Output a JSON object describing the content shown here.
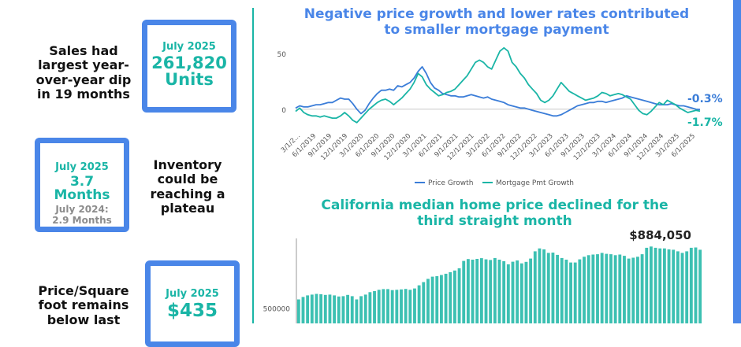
{
  "left_panel": {
    "sales": {
      "description": "Sales had largest year-over-year dip in 19 months",
      "date": "July 2025",
      "value": "261,820",
      "unit": "Units"
    },
    "inventory": {
      "date": "July 2025",
      "value": "3.7 Months",
      "prior_label": "July 2024:",
      "prior_value": "2.9 Months",
      "description": "Inventory could be reaching a plateau"
    },
    "price_sqft": {
      "description": "Price/Square foot remains below last",
      "date": "July 2025",
      "value": "$435"
    }
  },
  "colors": {
    "accent_blue": "#4a86e8",
    "teal": "#1ab5a6",
    "price_blue": "#3b7dd8",
    "bar_teal": "#3cc0b2"
  },
  "chart_data": [
    {
      "type": "line",
      "title": "Negative price growth and lower rates contributed to smaller mortgage payment",
      "ylim": [
        -15,
        57
      ],
      "yticks": [
        0,
        50
      ],
      "xtick_labels": [
        "3/1/2...",
        "6/1/2019",
        "9/1/2019",
        "12/1/2019",
        "3/1/2020",
        "6/1/2020",
        "9/1/2020",
        "12/1/2020",
        "3/1/2021",
        "6/1/2021",
        "9/1/2021",
        "12/1/2021",
        "3/1/2022",
        "6/1/2022",
        "9/1/2022",
        "12/1/2022",
        "3/1/2023",
        "6/1/2023",
        "9/1/2023",
        "12/1/2023",
        "3/1/2024",
        "6/1/2024",
        "9/1/2024",
        "12/1/2024",
        "3/1/2025",
        "6/1/2025"
      ],
      "series": [
        {
          "name": "Price Growth",
          "color": "#3b7dd8",
          "end_label": "-0.3%",
          "values": [
            1,
            3,
            2,
            2,
            3,
            4,
            4,
            5,
            6,
            6,
            8,
            10,
            9,
            9,
            5,
            0,
            -4,
            -1,
            5,
            10,
            14,
            17,
            17,
            18,
            17,
            21,
            20,
            22,
            24,
            28,
            34,
            38,
            32,
            24,
            19,
            17,
            14,
            13,
            12,
            12,
            11,
            11,
            12,
            13,
            12,
            11,
            10,
            11,
            9,
            8,
            7,
            6,
            4,
            3,
            2,
            1,
            1,
            0,
            -1,
            -2,
            -3,
            -4,
            -5,
            -6,
            -6,
            -5,
            -3,
            -1,
            1,
            3,
            4,
            5,
            6,
            6,
            7,
            7,
            6,
            7,
            8,
            9,
            10,
            12,
            11,
            10,
            9,
            8,
            7,
            6,
            5,
            4,
            4,
            4,
            5,
            4,
            3,
            3,
            2,
            1,
            0,
            -0.3
          ]
        },
        {
          "name": "Mortgage Pmt Growth",
          "color": "#1ab5a6",
          "end_label": "-1.7%",
          "values": [
            -2,
            1,
            -3,
            -5,
            -6,
            -6,
            -7,
            -6,
            -7,
            -8,
            -8,
            -6,
            -3,
            -6,
            -10,
            -12,
            -8,
            -4,
            0,
            3,
            6,
            8,
            9,
            7,
            4,
            7,
            10,
            14,
            18,
            24,
            32,
            29,
            22,
            18,
            15,
            12,
            13,
            15,
            16,
            18,
            22,
            26,
            30,
            36,
            42,
            44,
            42,
            38,
            36,
            44,
            52,
            55,
            52,
            42,
            38,
            32,
            28,
            22,
            18,
            14,
            8,
            6,
            8,
            12,
            18,
            24,
            20,
            16,
            14,
            12,
            10,
            8,
            9,
            10,
            12,
            15,
            14,
            12,
            13,
            14,
            13,
            11,
            9,
            4,
            -1,
            -4,
            -5,
            -2,
            2,
            6,
            4,
            8,
            6,
            4,
            1,
            -1,
            -3,
            -2,
            -1,
            -1.7
          ]
        }
      ]
    },
    {
      "type": "bar",
      "title": "California median home price declined for the third straight month",
      "ytick_label": "500000",
      "ytick_value": 500000,
      "ylim": [
        410000,
        970000
      ],
      "annotation": "$884,050",
      "values": [
        560000,
        575000,
        585000,
        590000,
        594000,
        592000,
        588000,
        590000,
        585000,
        578000,
        580000,
        588000,
        580000,
        560000,
        580000,
        590000,
        605000,
        612000,
        620000,
        624000,
        624000,
        618000,
        620000,
        622000,
        625000,
        620000,
        628000,
        648000,
        668000,
        688000,
        702000,
        705000,
        712000,
        720000,
        730000,
        740000,
        754000,
        800000,
        812000,
        808000,
        813000,
        817000,
        810000,
        806000,
        818000,
        808000,
        798000,
        779000,
        795000,
        803000,
        785000,
        794000,
        815000,
        860000,
        878000,
        872000,
        850000,
        852000,
        838000,
        818000,
        808000,
        790000,
        790000,
        810000,
        826000,
        836000,
        840000,
        842000,
        850000,
        844000,
        842000,
        836000,
        840000,
        832000,
        815000,
        820000,
        826000,
        842000,
        882000,
        890000,
        882000,
        878000,
        878000,
        872000,
        870000,
        860000,
        850000,
        860000,
        882000,
        884050,
        870000
      ]
    }
  ]
}
